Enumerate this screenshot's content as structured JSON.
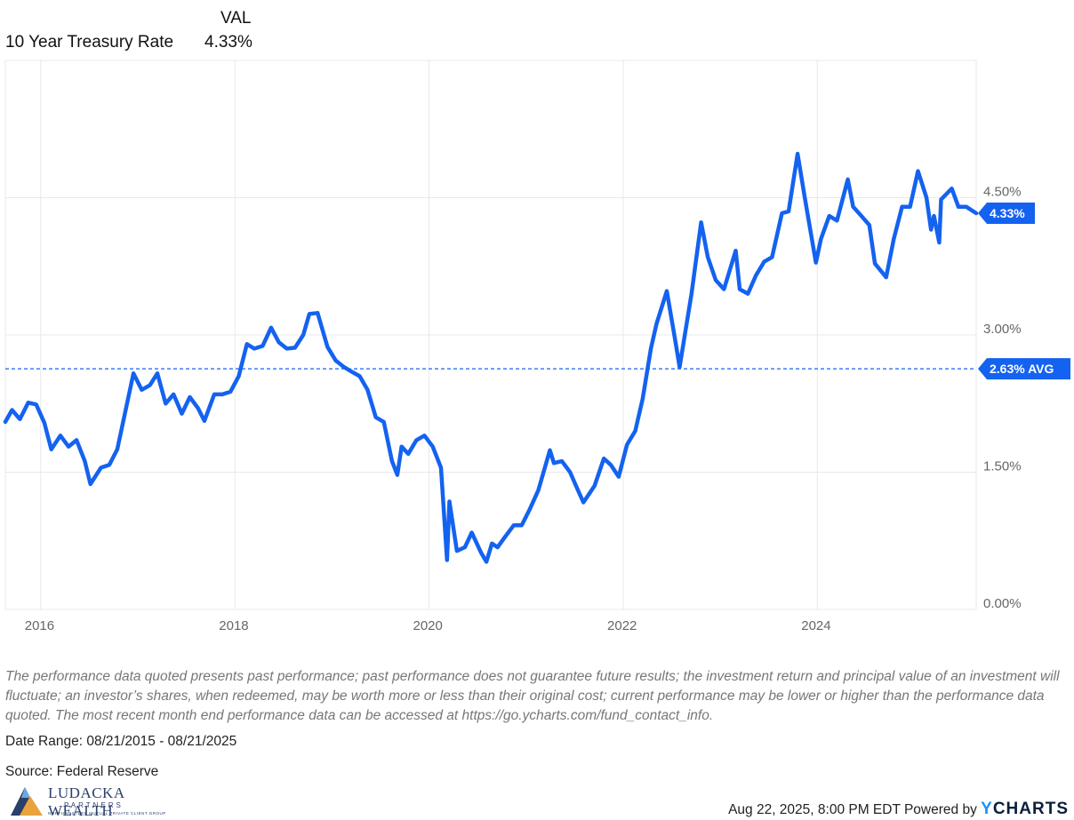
{
  "legend": {
    "column_header": "VAL",
    "series_label": "10 Year Treasury Rate",
    "series_value": "4.33%"
  },
  "chart_data": {
    "type": "line",
    "title": "",
    "xlabel": "",
    "ylabel": "",
    "x_ticks": [
      "2016",
      "2018",
      "2020",
      "2022",
      "2024"
    ],
    "y_ticks": [
      "0.00%",
      "1.50%",
      "3.00%",
      "4.50%"
    ],
    "ylim": [
      0,
      6
    ],
    "xlim": [
      "2015-08-21",
      "2025-08-21"
    ],
    "y_axis_position": "right",
    "grid": true,
    "line_color": "#1462f0",
    "average": {
      "value": 2.63,
      "label": "2.63% AVG",
      "style": "dashed"
    },
    "last_value": {
      "value": 4.33,
      "label": "4.33%"
    },
    "series": [
      {
        "name": "10 Year Treasury Rate",
        "points": [
          [
            "2015-08-21",
            2.05
          ],
          [
            "2015-09-15",
            2.18
          ],
          [
            "2015-10-15",
            2.08
          ],
          [
            "2015-11-15",
            2.26
          ],
          [
            "2015-12-15",
            2.24
          ],
          [
            "2016-01-15",
            2.04
          ],
          [
            "2016-02-10",
            1.75
          ],
          [
            "2016-03-15",
            1.9
          ],
          [
            "2016-04-15",
            1.78
          ],
          [
            "2016-05-15",
            1.85
          ],
          [
            "2016-06-15",
            1.62
          ],
          [
            "2016-07-06",
            1.37
          ],
          [
            "2016-08-15",
            1.55
          ],
          [
            "2016-09-15",
            1.58
          ],
          [
            "2016-10-15",
            1.75
          ],
          [
            "2016-11-10",
            2.1
          ],
          [
            "2016-12-15",
            2.58
          ],
          [
            "2017-01-15",
            2.4
          ],
          [
            "2017-02-15",
            2.45
          ],
          [
            "2017-03-15",
            2.58
          ],
          [
            "2017-04-15",
            2.25
          ],
          [
            "2017-05-15",
            2.35
          ],
          [
            "2017-06-15",
            2.14
          ],
          [
            "2017-07-15",
            2.32
          ],
          [
            "2017-08-15",
            2.2
          ],
          [
            "2017-09-08",
            2.06
          ],
          [
            "2017-10-15",
            2.35
          ],
          [
            "2017-11-15",
            2.35
          ],
          [
            "2017-12-15",
            2.38
          ],
          [
            "2018-01-15",
            2.55
          ],
          [
            "2018-02-15",
            2.9
          ],
          [
            "2018-03-15",
            2.85
          ],
          [
            "2018-04-15",
            2.88
          ],
          [
            "2018-05-17",
            3.08
          ],
          [
            "2018-06-15",
            2.92
          ],
          [
            "2018-07-15",
            2.85
          ],
          [
            "2018-08-15",
            2.86
          ],
          [
            "2018-09-15",
            3.0
          ],
          [
            "2018-10-08",
            3.23
          ],
          [
            "2018-11-08",
            3.24
          ],
          [
            "2018-12-15",
            2.87
          ],
          [
            "2019-01-15",
            2.72
          ],
          [
            "2019-02-15",
            2.65
          ],
          [
            "2019-03-15",
            2.6
          ],
          [
            "2019-04-15",
            2.55
          ],
          [
            "2019-05-15",
            2.4
          ],
          [
            "2019-06-15",
            2.1
          ],
          [
            "2019-07-15",
            2.05
          ],
          [
            "2019-08-15",
            1.62
          ],
          [
            "2019-09-04",
            1.47
          ],
          [
            "2019-09-20",
            1.78
          ],
          [
            "2019-10-15",
            1.7
          ],
          [
            "2019-11-15",
            1.85
          ],
          [
            "2019-12-15",
            1.9
          ],
          [
            "2020-01-15",
            1.78
          ],
          [
            "2020-02-15",
            1.55
          ],
          [
            "2020-03-09",
            0.54
          ],
          [
            "2020-03-18",
            1.18
          ],
          [
            "2020-04-15",
            0.64
          ],
          [
            "2020-05-15",
            0.68
          ],
          [
            "2020-06-10",
            0.84
          ],
          [
            "2020-07-15",
            0.62
          ],
          [
            "2020-08-04",
            0.52
          ],
          [
            "2020-08-25",
            0.72
          ],
          [
            "2020-09-15",
            0.68
          ],
          [
            "2020-10-15",
            0.8
          ],
          [
            "2020-11-15",
            0.92
          ],
          [
            "2020-12-15",
            0.92
          ],
          [
            "2021-01-15",
            1.1
          ],
          [
            "2021-02-15",
            1.3
          ],
          [
            "2021-03-31",
            1.74
          ],
          [
            "2021-04-15",
            1.6
          ],
          [
            "2021-05-15",
            1.62
          ],
          [
            "2021-06-15",
            1.5
          ],
          [
            "2021-07-15",
            1.3
          ],
          [
            "2021-08-04",
            1.17
          ],
          [
            "2021-09-15",
            1.35
          ],
          [
            "2021-10-20",
            1.65
          ],
          [
            "2021-11-15",
            1.58
          ],
          [
            "2021-12-15",
            1.45
          ],
          [
            "2022-01-15",
            1.8
          ],
          [
            "2022-02-15",
            1.95
          ],
          [
            "2022-03-15",
            2.3
          ],
          [
            "2022-04-15",
            2.85
          ],
          [
            "2022-05-06",
            3.12
          ],
          [
            "2022-06-14",
            3.48
          ],
          [
            "2022-07-15",
            2.95
          ],
          [
            "2022-08-01",
            2.65
          ],
          [
            "2022-09-15",
            3.45
          ],
          [
            "2022-10-21",
            4.23
          ],
          [
            "2022-11-15",
            3.85
          ],
          [
            "2022-12-15",
            3.6
          ],
          [
            "2023-01-15",
            3.5
          ],
          [
            "2023-02-28",
            3.92
          ],
          [
            "2023-03-15",
            3.5
          ],
          [
            "2023-04-15",
            3.45
          ],
          [
            "2023-05-15",
            3.65
          ],
          [
            "2023-06-15",
            3.8
          ],
          [
            "2023-07-15",
            3.85
          ],
          [
            "2023-08-21",
            4.33
          ],
          [
            "2023-09-15",
            4.35
          ],
          [
            "2023-10-19",
            4.98
          ],
          [
            "2023-11-15",
            4.5
          ],
          [
            "2023-12-27",
            3.79
          ],
          [
            "2024-01-15",
            4.05
          ],
          [
            "2024-02-15",
            4.3
          ],
          [
            "2024-03-15",
            4.25
          ],
          [
            "2024-04-25",
            4.7
          ],
          [
            "2024-05-15",
            4.4
          ],
          [
            "2024-06-15",
            4.3
          ],
          [
            "2024-07-15",
            4.2
          ],
          [
            "2024-08-05",
            3.78
          ],
          [
            "2024-09-16",
            3.63
          ],
          [
            "2024-10-15",
            4.05
          ],
          [
            "2024-11-15",
            4.4
          ],
          [
            "2024-12-15",
            4.4
          ],
          [
            "2025-01-14",
            4.79
          ],
          [
            "2025-02-15",
            4.5
          ],
          [
            "2025-03-04",
            4.15
          ],
          [
            "2025-03-15",
            4.3
          ],
          [
            "2025-04-04",
            4.01
          ],
          [
            "2025-04-11",
            4.48
          ],
          [
            "2025-05-21",
            4.6
          ],
          [
            "2025-06-15",
            4.4
          ],
          [
            "2025-07-15",
            4.4
          ],
          [
            "2025-08-21",
            4.33
          ]
        ]
      }
    ]
  },
  "footer": {
    "disclaimer": "The performance data quoted presents past performance; past performance does not guarantee future results; the investment return and principal value of an investment will fluctuate; an investor’s shares, when redeemed, may be worth more or less than their original cost; current performance may be lower or higher than the performance data quoted. The most recent month end performance data can be accessed at https://go.ycharts.com/fund_contact_info.",
    "date_range": "Date Range: 08/21/2015 - 08/21/2025",
    "source": "Source: Federal Reserve",
    "logo_name": "LUDACKA WEALTH",
    "logo_sub": "PARTNERS",
    "logo_tagline": "NORTHWESTERN MUTUAL PRIVATE CLIENT GROUP",
    "timestamp": "Aug 22, 2025, 8:00 PM EDT",
    "powered_by": "Powered by",
    "brand_y": "Y",
    "brand_rest": "CHARTS"
  },
  "colors": {
    "line": "#1462f0",
    "flag": "#1462f0",
    "grid": "#e9e9e9",
    "axis_text": "#666666"
  }
}
